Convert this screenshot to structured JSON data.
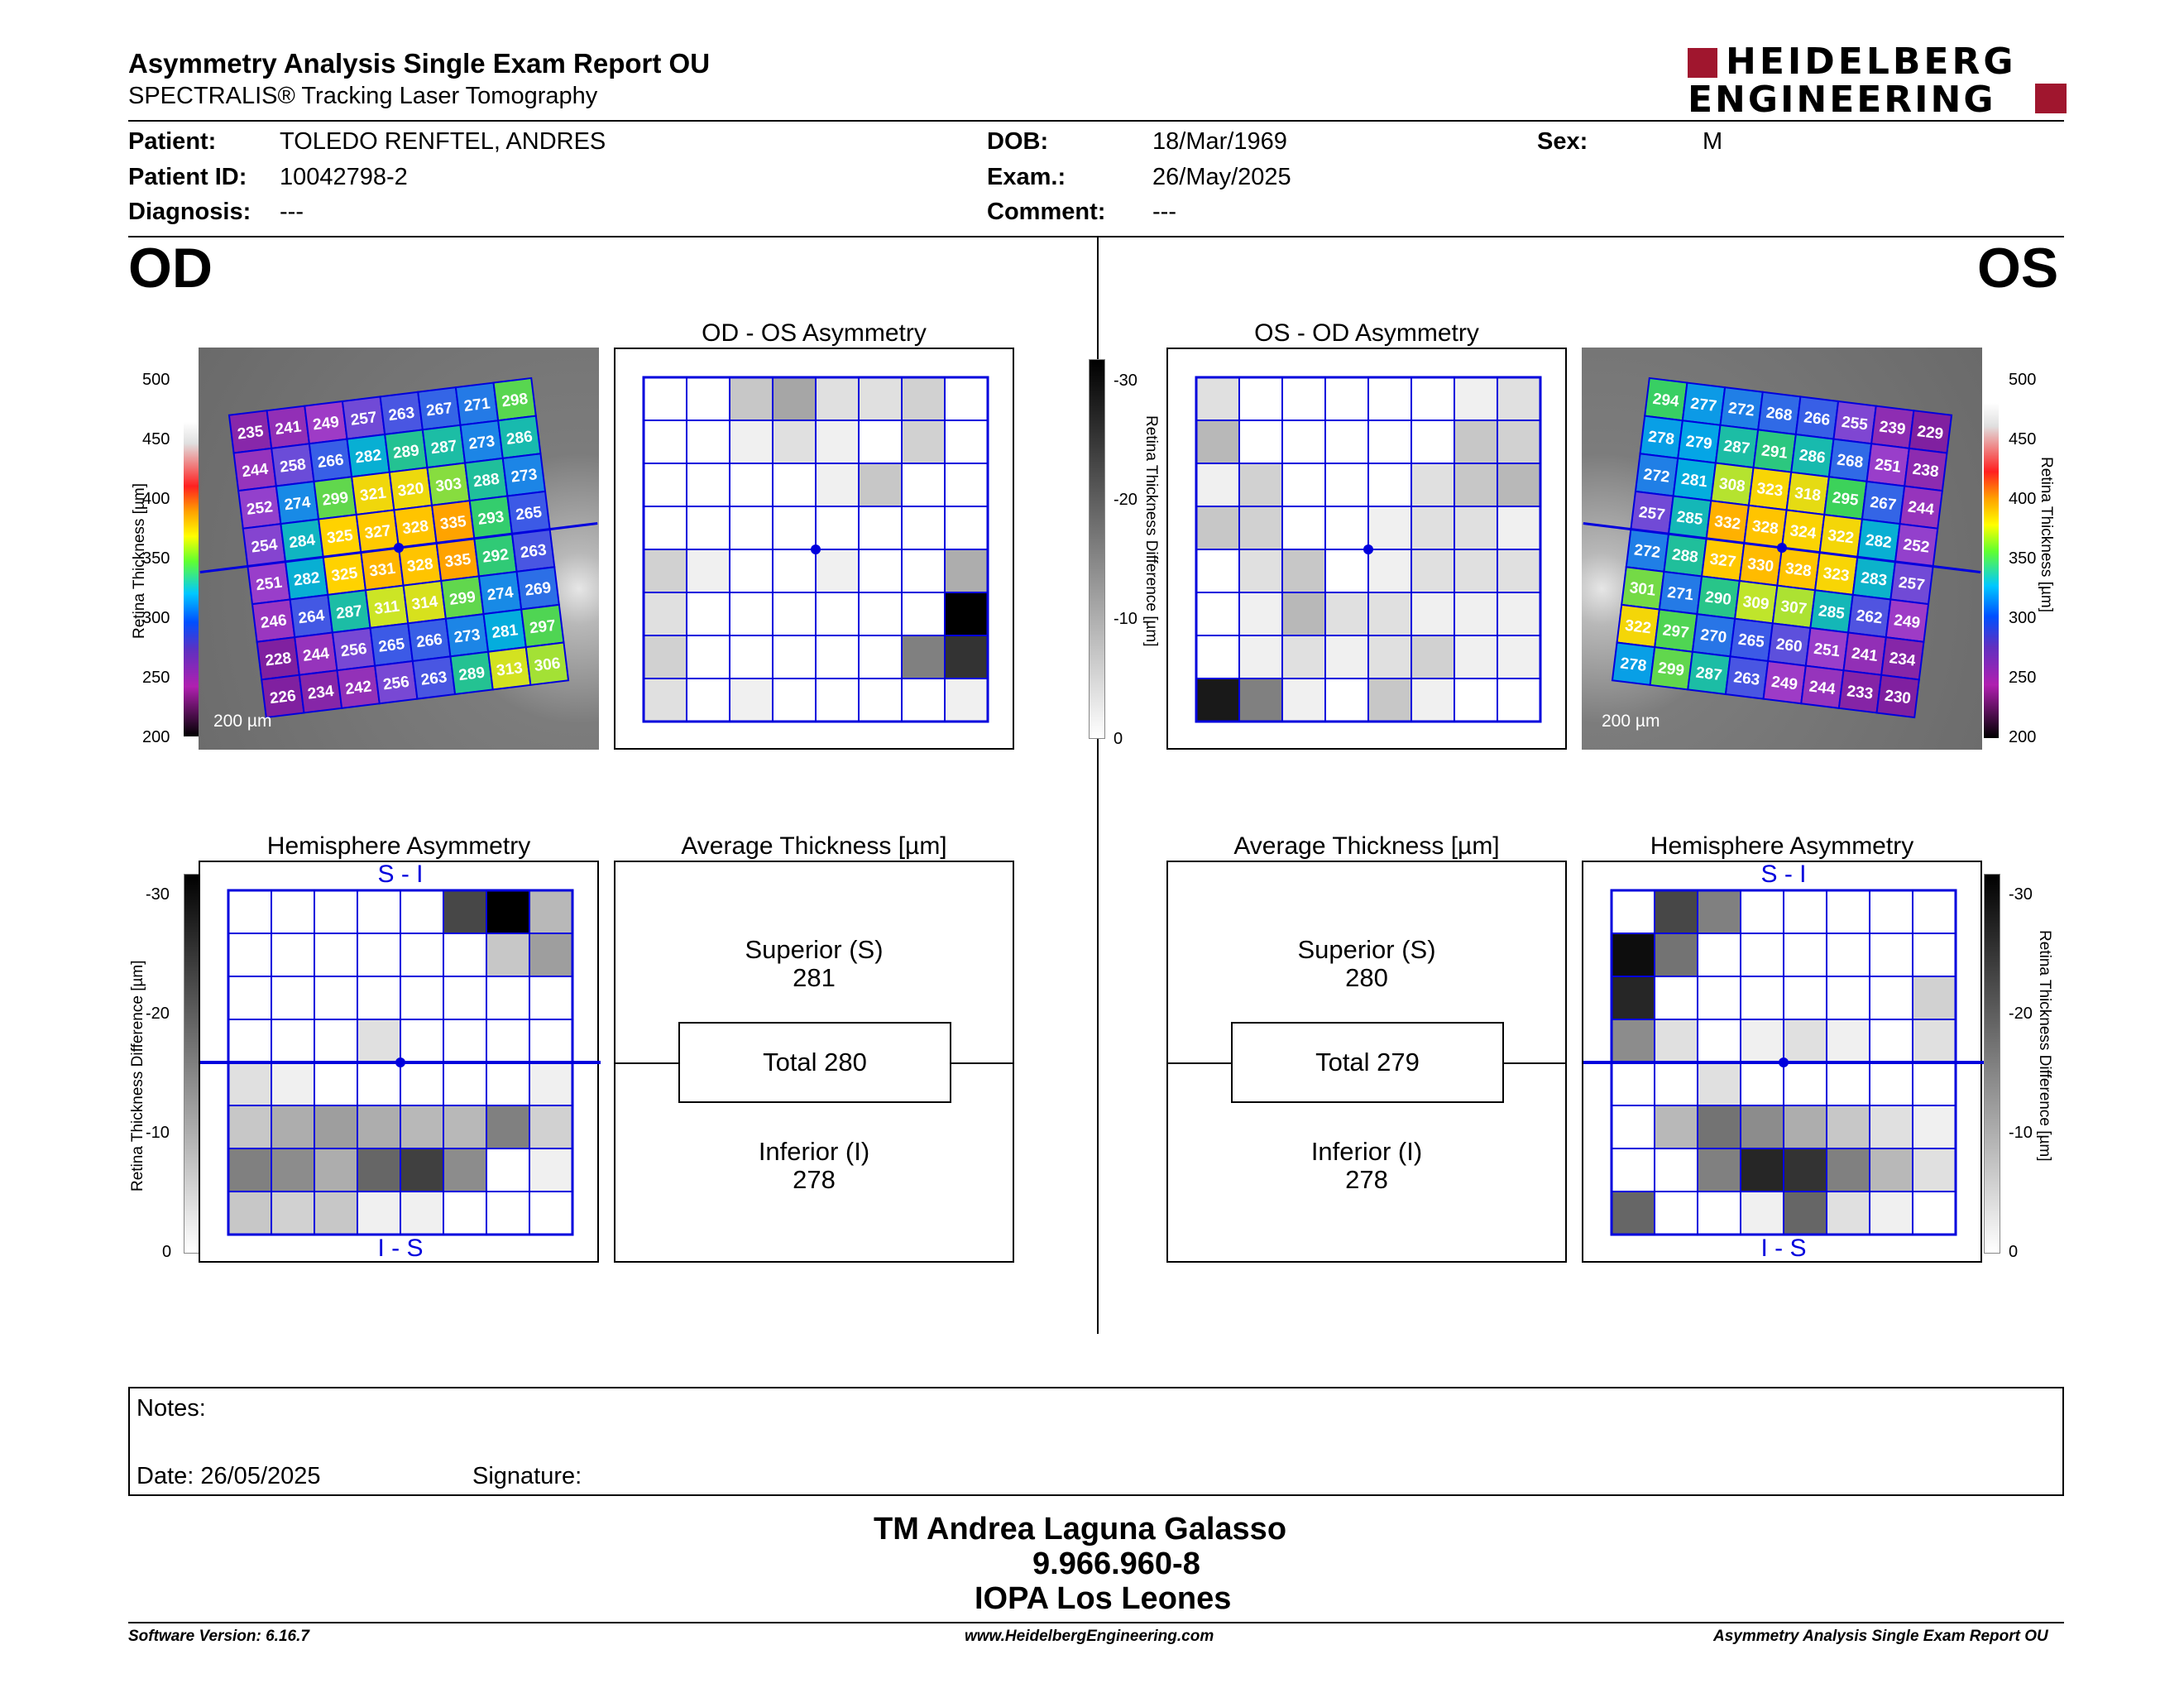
{
  "header": {
    "title": "Asymmetry Analysis Single Exam Report OU",
    "subtitle": "SPECTRALIS® Tracking Laser Tomography",
    "logo_line1": "HEIDELBERG",
    "logo_line2": "ENGINEERING"
  },
  "patient": {
    "patient_label": "Patient:",
    "patient_value": "TOLEDO RENFTEL, ANDRES",
    "id_label": "Patient ID:",
    "id_value": "10042798-2",
    "diagnosis_label": "Diagnosis:",
    "diagnosis_value": "---",
    "dob_label": "DOB:",
    "dob_value": "18/Mar/1969",
    "exam_label": "Exam.:",
    "exam_value": "26/May/2025",
    "comment_label": "Comment:",
    "comment_value": "---",
    "sex_label": "Sex:",
    "sex_value": "M"
  },
  "eyes": {
    "od": "OD",
    "os": "OS"
  },
  "panels": {
    "od_os_title": "OD - OS Asymmetry",
    "os_od_title": "OS - OD Asymmetry",
    "hemi_title": "Hemisphere Asymmetry",
    "avg_title": "Average Thickness [µm]",
    "si_label": "S - I",
    "is_label": "I - S",
    "scale_bar": "200 µm"
  },
  "axes": {
    "thickness_label": "Retina Thickness [µm]",
    "diff_label": "Retina Thickness Difference [µm]",
    "thickness_ticks": [
      "500",
      "450",
      "400",
      "350",
      "300",
      "250",
      "200"
    ],
    "diff_ticks": [
      "-30",
      "-20",
      "-10",
      "0"
    ]
  },
  "average": {
    "od": {
      "superior_label": "Superior (S)",
      "superior": "281",
      "total": "Total 280",
      "inferior_label": "Inferior (I)",
      "inferior": "278"
    },
    "os": {
      "superior_label": "Superior (S)",
      "superior": "280",
      "total": "Total 279",
      "inferior_label": "Inferior (I)",
      "inferior": "278"
    }
  },
  "grids": {
    "od_thickness": [
      [
        235,
        241,
        249,
        257,
        263,
        267,
        271,
        298
      ],
      [
        244,
        258,
        266,
        282,
        289,
        287,
        273,
        286
      ],
      [
        252,
        274,
        299,
        321,
        320,
        303,
        288,
        273
      ],
      [
        254,
        284,
        325,
        327,
        328,
        335,
        293,
        265
      ],
      [
        251,
        282,
        325,
        331,
        328,
        335,
        292,
        263
      ],
      [
        246,
        264,
        287,
        311,
        314,
        299,
        274,
        269
      ],
      [
        228,
        244,
        256,
        265,
        266,
        273,
        281,
        297
      ],
      [
        226,
        234,
        242,
        256,
        263,
        289,
        313,
        306
      ]
    ],
    "os_thickness": [
      [
        294,
        277,
        272,
        268,
        266,
        255,
        239,
        229
      ],
      [
        278,
        279,
        287,
        291,
        286,
        268,
        251,
        238
      ],
      [
        272,
        281,
        308,
        323,
        318,
        295,
        267,
        244
      ],
      [
        257,
        285,
        332,
        328,
        324,
        322,
        282,
        252
      ],
      [
        272,
        288,
        327,
        330,
        328,
        323,
        283,
        257
      ],
      [
        301,
        271,
        290,
        309,
        307,
        285,
        262,
        249
      ],
      [
        322,
        297,
        270,
        265,
        260,
        251,
        241,
        234
      ],
      [
        278,
        299,
        287,
        263,
        249,
        244,
        233,
        230
      ]
    ],
    "od_os_asym": [
      [
        0,
        0,
        0.22,
        0.35,
        0.12,
        0.12,
        0.18,
        0
      ],
      [
        0,
        0,
        0.06,
        0.12,
        0.06,
        0,
        0.18,
        0
      ],
      [
        0,
        0,
        0,
        0,
        0.06,
        0.22,
        0,
        0
      ],
      [
        0,
        0,
        0,
        0,
        0,
        0,
        0,
        0
      ],
      [
        0.18,
        0.06,
        0,
        0,
        0.06,
        0,
        0,
        0.32
      ],
      [
        0.12,
        0,
        0,
        0,
        0,
        0,
        0,
        1.0
      ],
      [
        0.18,
        0,
        0,
        0,
        0,
        0,
        0.5,
        0.8
      ],
      [
        0.12,
        0,
        0.06,
        0,
        0,
        0,
        0,
        0.06
      ]
    ],
    "os_od_asym": [
      [
        0.12,
        0,
        0,
        0,
        0,
        0,
        0.06,
        0.12
      ],
      [
        0.28,
        0,
        0,
        0,
        0,
        0,
        0.22,
        0.18
      ],
      [
        0.06,
        0.18,
        0,
        0,
        0,
        0.12,
        0.22,
        0.28
      ],
      [
        0.22,
        0.18,
        0,
        0,
        0.06,
        0.12,
        0.12,
        0.06
      ],
      [
        0,
        0.12,
        0.22,
        0,
        0.06,
        0.12,
        0.12,
        0.12
      ],
      [
        0,
        0.06,
        0.28,
        0.12,
        0.12,
        0.06,
        0.06,
        0.06
      ],
      [
        0,
        0.06,
        0.12,
        0.06,
        0.12,
        0.18,
        0.06,
        0.06
      ],
      [
        0.9,
        0.5,
        0.06,
        0,
        0.22,
        0.06,
        0,
        0
      ]
    ],
    "od_hemi": [
      [
        0,
        0,
        0,
        0,
        0,
        0.72,
        1.0,
        0.28
      ],
      [
        0,
        0,
        0,
        0,
        0,
        0,
        0.22,
        0.38
      ],
      [
        0,
        0,
        0,
        0,
        0,
        0,
        0,
        0
      ],
      [
        0,
        0,
        0,
        0.12,
        0,
        0,
        0,
        0
      ],
      [
        0.12,
        0.06,
        0,
        0,
        0,
        0,
        0,
        0.06
      ],
      [
        0.22,
        0.32,
        0.38,
        0.32,
        0.28,
        0.28,
        0.5,
        0.18
      ],
      [
        0.5,
        0.45,
        0.32,
        0.6,
        0.75,
        0.45,
        0,
        0.06
      ],
      [
        0.22,
        0.18,
        0.22,
        0.06,
        0.06,
        0,
        0,
        0
      ]
    ],
    "os_hemi": [
      [
        0,
        0.72,
        0.5,
        0,
        0,
        0,
        0,
        0
      ],
      [
        0.95,
        0.55,
        0,
        0,
        0,
        0,
        0,
        0
      ],
      [
        0.85,
        0,
        0,
        0,
        0,
        0,
        0,
        0.18
      ],
      [
        0.45,
        0.12,
        0,
        0.06,
        0.12,
        0.06,
        0,
        0.12
      ],
      [
        0,
        0,
        0.12,
        0,
        0,
        0,
        0,
        0
      ],
      [
        0,
        0.28,
        0.55,
        0.45,
        0.32,
        0.22,
        0.12,
        0.06
      ],
      [
        0,
        0,
        0.5,
        0.85,
        0.8,
        0.5,
        0.28,
        0.12
      ],
      [
        0.6,
        0,
        0,
        0.06,
        0.6,
        0.12,
        0.06,
        0
      ]
    ]
  },
  "notes": {
    "label": "Notes:",
    "date": "Date: 26/05/2025",
    "signature": "Signature:"
  },
  "signer": {
    "name": "TM Andrea Laguna Galasso",
    "id": "9.966.960-8",
    "org": "IOPA Los Leones"
  },
  "footer": {
    "version": "Software Version: 6.16.7",
    "url": "www.HeidelbergEngineering.com",
    "report": "Asymmetry Analysis Single Exam Report OU"
  },
  "colors": {
    "grid_blue": "#0000dd",
    "brand_red": "#a0162e"
  }
}
